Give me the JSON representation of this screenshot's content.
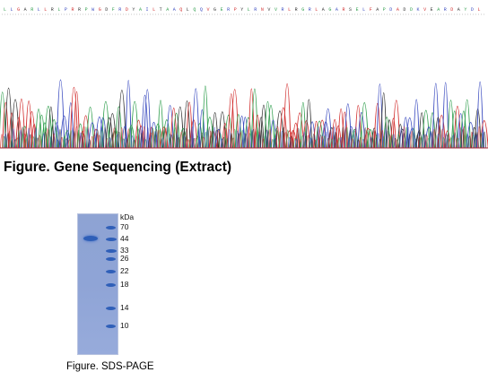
{
  "figures": {
    "gene_sequencing_caption": "Figure. Gene Sequencing (Extract)",
    "sds_page_caption": "Figure. SDS-PAGE"
  },
  "chromatogram": {
    "base_letters": "L L G A R L L R L P R R P W G D F R D Y A I L T A A Q L Q Q V G E R P Y L R N V V R L R G R L A G A R S E L F A P D A D D K V E A R D A Y D L",
    "trace_colors": {
      "A": "#2e9e4c",
      "C": "#3b4cc0",
      "G": "#333333",
      "T": "#d23030"
    }
  },
  "gel": {
    "unit_label": "kDa",
    "markers": [
      "70",
      "44",
      "33",
      "26",
      "22",
      "18",
      "14",
      "10"
    ],
    "sample_band_kda": 44,
    "colors": {
      "band": "#2f5fb8",
      "gel_background": "#8fa4d6"
    }
  }
}
